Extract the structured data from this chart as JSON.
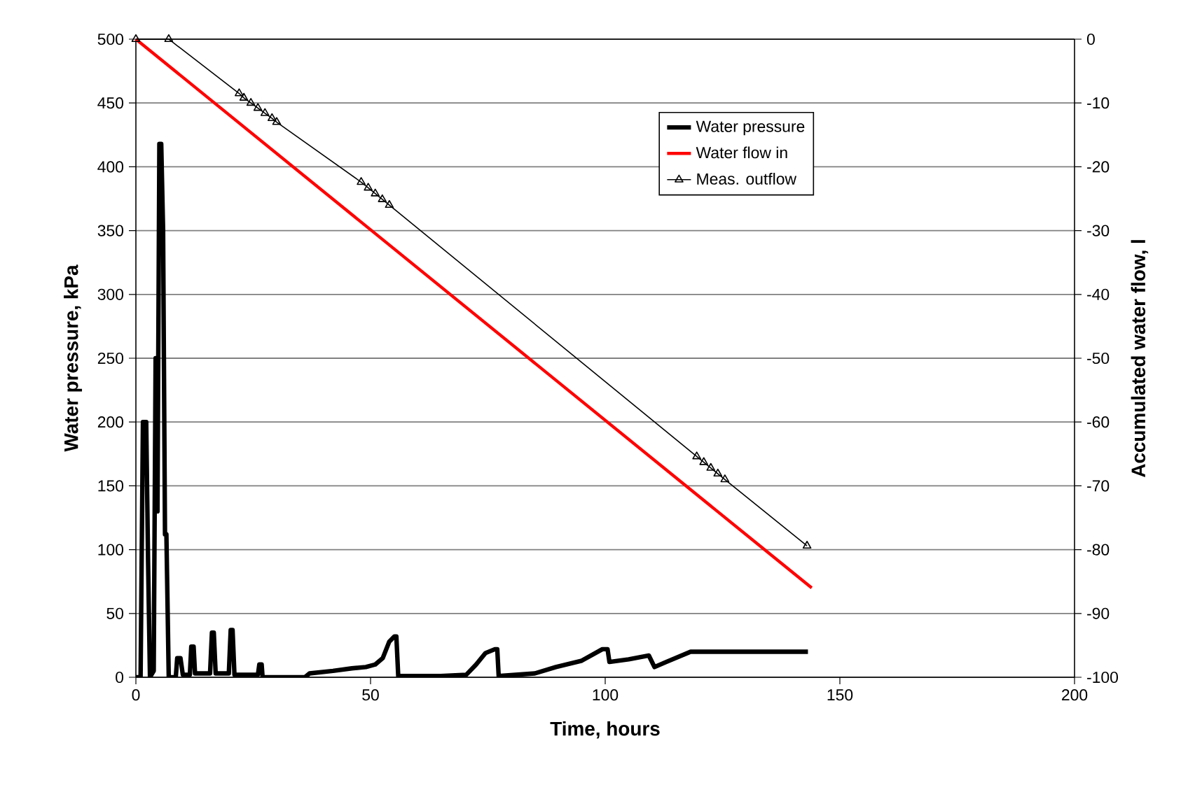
{
  "chart_data": {
    "type": "line",
    "xlabel": "Time, hours",
    "ylabel": "Water pressure, kPa",
    "y2label": "Accumulated water flow, l",
    "xlim": [
      0,
      200
    ],
    "xticks": [
      0,
      50,
      100,
      150,
      200
    ],
    "ylim": [
      0,
      500
    ],
    "yticks": [
      0,
      50,
      100,
      150,
      200,
      250,
      300,
      350,
      400,
      450,
      500
    ],
    "y2lim": [
      -100,
      0
    ],
    "y2ticks": [
      -100,
      -90,
      -80,
      -70,
      -60,
      -50,
      -40,
      -30,
      -20,
      -10,
      0
    ],
    "grid": "y",
    "legend": "top right",
    "series": [
      {
        "name": "Water pressure",
        "color": "#000000",
        "x": [
          0,
          1,
          1.5,
          2.2,
          2.6,
          3,
          3.8,
          4.2,
          4.6,
          5,
          5.4,
          5.8,
          6.2,
          6.5,
          7,
          8.5,
          8.8,
          9.5,
          10,
          11.5,
          11.8,
          12.3,
          12.6,
          15.8,
          16.2,
          16.6,
          17,
          19.8,
          20.2,
          20.6,
          21,
          26,
          26.3,
          26.8,
          27,
          36,
          37,
          42,
          46,
          49,
          51,
          52.6,
          54,
          55.1,
          55.5,
          55.9,
          65,
          70.4,
          72.5,
          74.5,
          76.5,
          77,
          77.3,
          85,
          89.5,
          95,
          99.4,
          100.5,
          100.9,
          105,
          109.3,
          110.5,
          113,
          118.2,
          143.2
        ],
        "values": [
          0,
          0,
          200,
          200,
          90,
          0,
          5,
          250,
          130,
          418,
          418,
          350,
          112,
          112,
          0,
          0,
          15,
          15,
          2,
          2,
          24,
          24,
          3,
          3,
          35,
          35,
          3,
          3,
          37,
          37,
          2,
          2,
          10,
          10,
          0,
          0,
          3,
          5,
          7,
          8,
          10,
          15,
          28,
          32,
          32,
          1,
          1,
          2,
          10,
          19,
          22,
          22,
          1,
          3,
          8,
          13,
          22,
          22,
          12,
          14,
          17,
          8,
          12,
          20,
          20
        ]
      },
      {
        "name": "Water flow in",
        "color": "#ff0000",
        "axis": "y2",
        "x": [
          0,
          144
        ],
        "values": [
          0,
          -86
        ]
      },
      {
        "name": "Meas. outflow",
        "color": "#000000",
        "axis": "y2",
        "marker": "triangle",
        "x": [
          0,
          7,
          22,
          23,
          24.5,
          26,
          27.5,
          29,
          30,
          48,
          49.5,
          51,
          52.5,
          54,
          119.5,
          121,
          122.5,
          124,
          125.5,
          143
        ],
        "values": [
          0,
          0,
          -8.5,
          -9.2,
          -10,
          -10.8,
          -11.6,
          -12.4,
          -13,
          -22.4,
          -23.3,
          -24.2,
          -25.1,
          -26,
          -65.4,
          -66.3,
          -67.2,
          -68.1,
          -69,
          -79.4
        ]
      }
    ]
  }
}
